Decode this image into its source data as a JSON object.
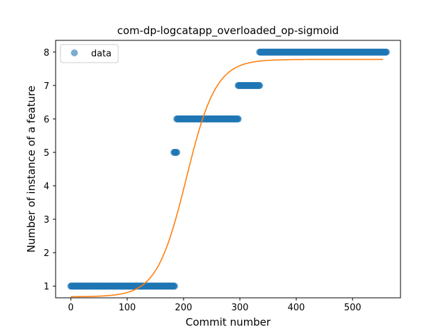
{
  "chart_data": {
    "type": "scatter",
    "title": "com-dp-logcatapp_overloaded_op-sigmoid",
    "xlabel": "Commit number",
    "ylabel": "Number of instance of a feature",
    "xlim": [
      -27,
      585
    ],
    "ylim": [
      0.65,
      8.35
    ],
    "xticks": [
      0,
      100,
      200,
      300,
      400,
      500
    ],
    "yticks": [
      1,
      2,
      3,
      4,
      5,
      6,
      7,
      8
    ],
    "grid": false,
    "legend": {
      "position": "top-left",
      "entries": [
        "data"
      ]
    },
    "scatter_segments": [
      {
        "x_start": 0,
        "x_end": 184,
        "y": 1
      },
      {
        "x_start": 183,
        "x_end": 188,
        "y": 5
      },
      {
        "x_start": 188,
        "x_end": 297,
        "y": 6
      },
      {
        "x_start": 297,
        "x_end": 335,
        "y": 7
      },
      {
        "x_start": 335,
        "x_end": 560,
        "y": 8
      }
    ],
    "fit_curve": {
      "model": "sigmoid",
      "L": 7.1,
      "x0": 205,
      "k": 0.038,
      "offset": 0.68,
      "x_range": [
        0,
        555
      ]
    },
    "colors": {
      "scatter": "#1f77b4",
      "fit": "#ff7f0e",
      "axes": "#000000"
    }
  }
}
